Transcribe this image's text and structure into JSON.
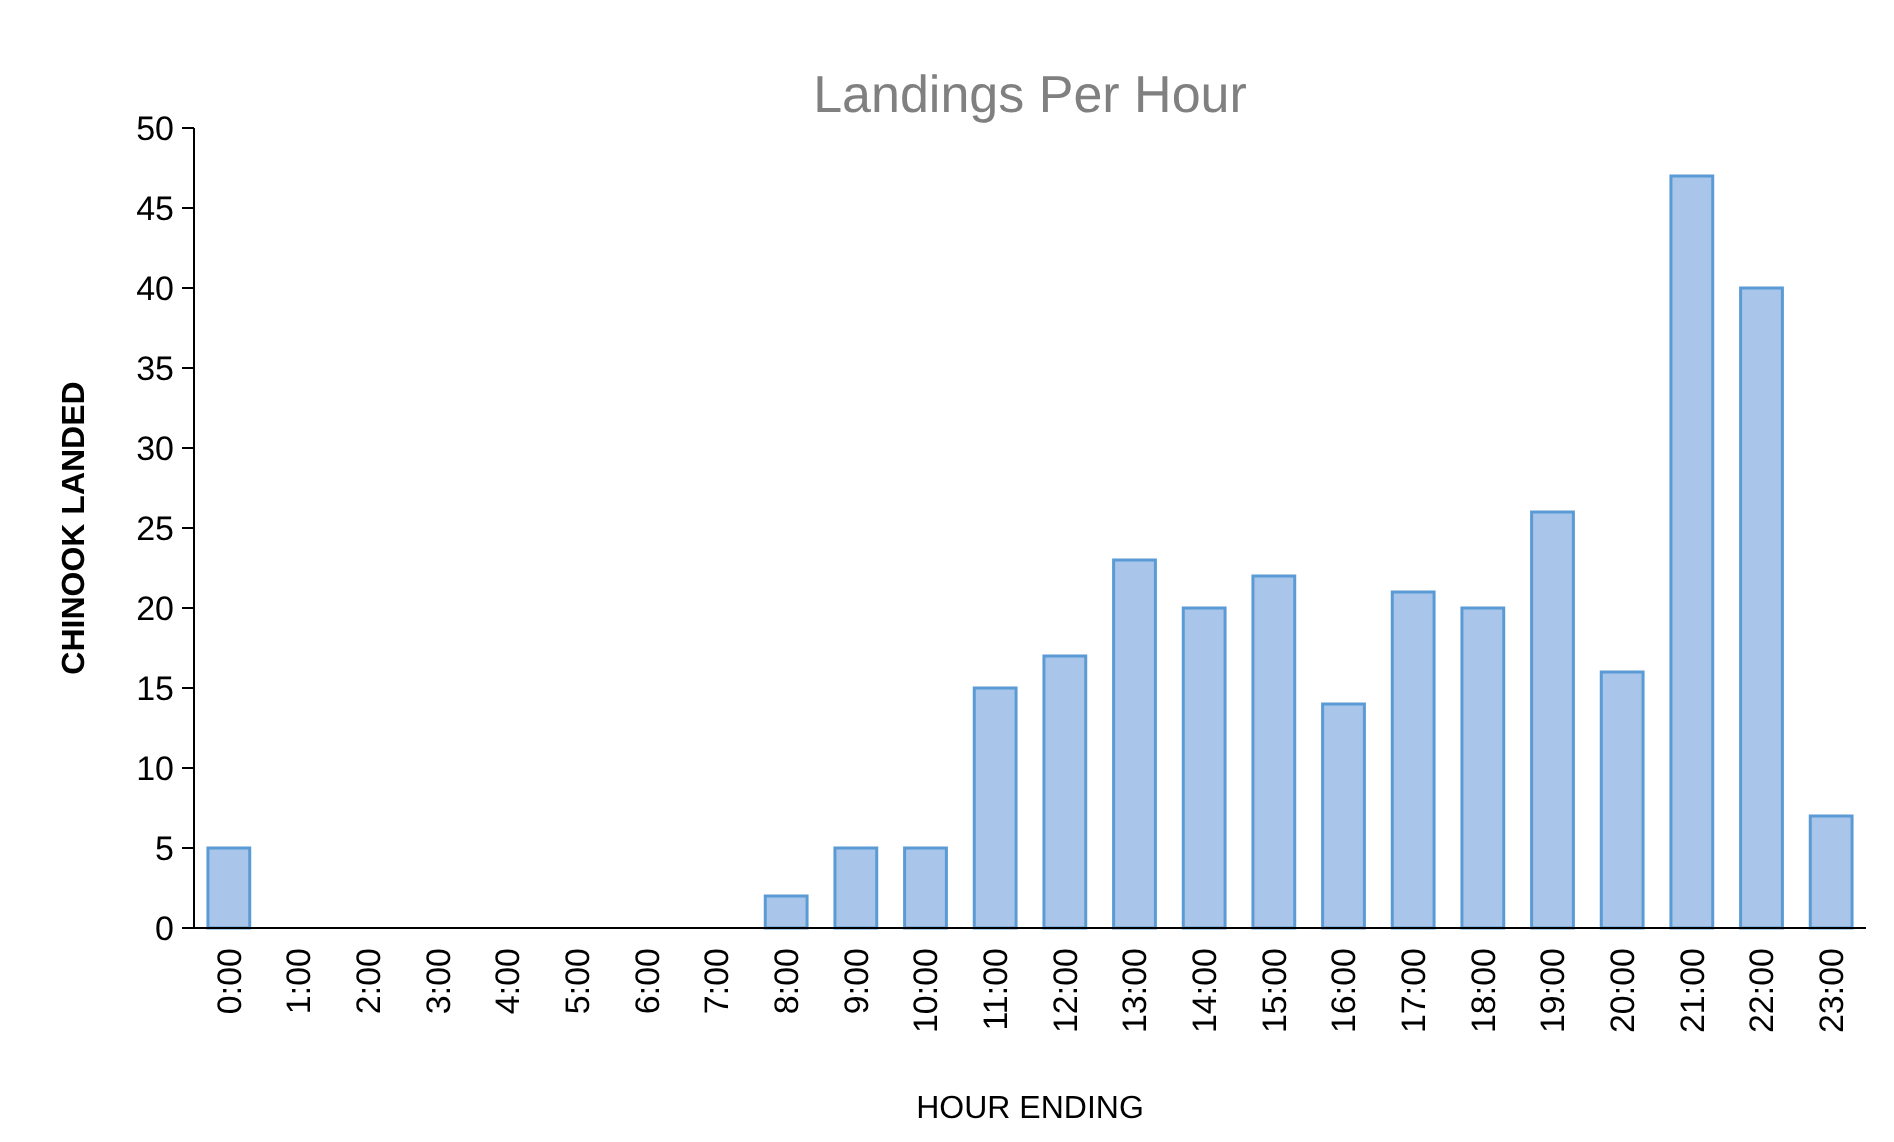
{
  "chart_data": {
    "type": "bar",
    "title": "Landings Per Hour",
    "xlabel": "HOUR ENDING",
    "ylabel": "CHINOOK LANDED",
    "categories": [
      "0:00",
      "1:00",
      "2:00",
      "3:00",
      "4:00",
      "5:00",
      "6:00",
      "7:00",
      "8:00",
      "9:00",
      "10:00",
      "11:00",
      "12:00",
      "13:00",
      "14:00",
      "15:00",
      "16:00",
      "17:00",
      "18:00",
      "19:00",
      "20:00",
      "21:00",
      "22:00",
      "23:00"
    ],
    "values": [
      5,
      0,
      0,
      0,
      0,
      0,
      0,
      0,
      2,
      5,
      5,
      15,
      17,
      23,
      20,
      22,
      14,
      21,
      20,
      26,
      16,
      47,
      40,
      7
    ],
    "color": "#a9c5ea",
    "ylim": [
      0,
      50
    ],
    "yticks": [
      0,
      5,
      10,
      15,
      20,
      25,
      30,
      35,
      40,
      45,
      50
    ],
    "grid": false
  }
}
